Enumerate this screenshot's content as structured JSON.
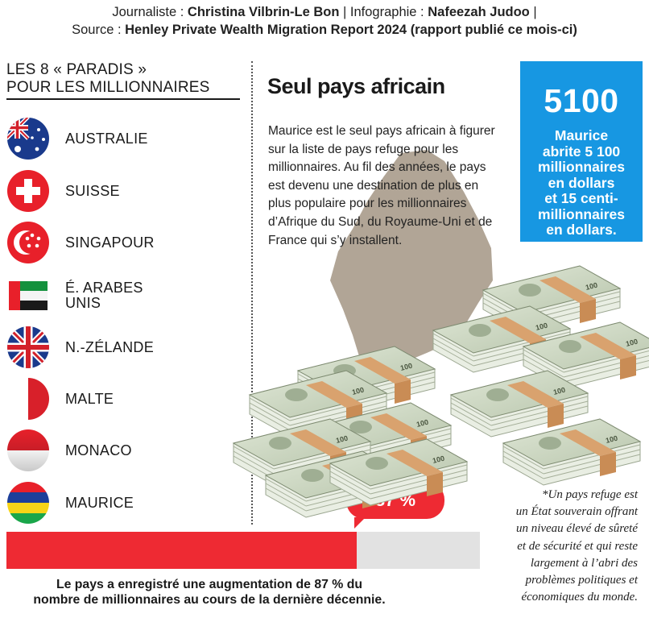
{
  "credits": {
    "line1_prefix": "Journaliste : ",
    "journalist": "Christina Vilbrin-Le Bon",
    "line1_sep": " | Infographie : ",
    "infographic": "Nafeezah Judoo",
    "line1_suffix": " |",
    "line2_prefix": "Source : ",
    "source": "Henley Private Wealth Migration Report 2024 (rapport publié ce mois-ci)"
  },
  "left": {
    "title_line1": "LES 8 « PARADIS »",
    "title_line2": "POUR LES MILLIONNAIRES",
    "countries": [
      {
        "name": "AUSTRALIE",
        "flag": "australia-flag"
      },
      {
        "name": "SUISSE",
        "flag": "switzerland-flag"
      },
      {
        "name": "SINGAPOUR",
        "flag": "singapore-flag"
      },
      {
        "name_line1": "É. ARABES",
        "name_line2": "UNIS",
        "flag": "uae-flag"
      },
      {
        "name": "N.-ZÉLANDE",
        "flag": "new-zealand-flag"
      },
      {
        "name": "MALTE",
        "flag": "malta-flag"
      },
      {
        "name": "MONACO",
        "flag": "monaco-flag"
      },
      {
        "name": "MAURICE",
        "flag": "mauritius-flag"
      }
    ]
  },
  "article": {
    "headline": "Seul pays africain",
    "body": "Maurice est le seul pays africain à figurer sur la liste de pays refuge pour les millionnaires. Au fil des années, le pays est devenu une destination de plus en plus populaire pour les millionnaires d’Afrique du Sud, du Royaume-Uni et de France qui s’y installent."
  },
  "stat_box": {
    "number": "5100",
    "text_lines": [
      "Maurice",
      "abrite 5 100",
      "millionnaires",
      "en dollars",
      "et 15 centi-",
      "millionnaires",
      "en dollars."
    ],
    "color": "#1797e2"
  },
  "growth": {
    "value_label": "87 %",
    "fraction": 0.74,
    "caption_line1": "Le pays a enregistré une augmentation de 87 % du",
    "caption_line2": "nombre de millionnaires au cours de la dernière décennie.",
    "color": "#ee2a33"
  },
  "footnote": {
    "lines": [
      "*Un pays refuge est",
      "un État souverain offrant",
      "un niveau élevé de sûreté",
      "et de sécurité et qui reste",
      "largement à l’abri des",
      "problèmes politiques et",
      "économiques du monde."
    ]
  },
  "decor": {
    "banknote_text": "100",
    "island": "mauritius-island-silhouette",
    "money": "banknote-stacks"
  }
}
